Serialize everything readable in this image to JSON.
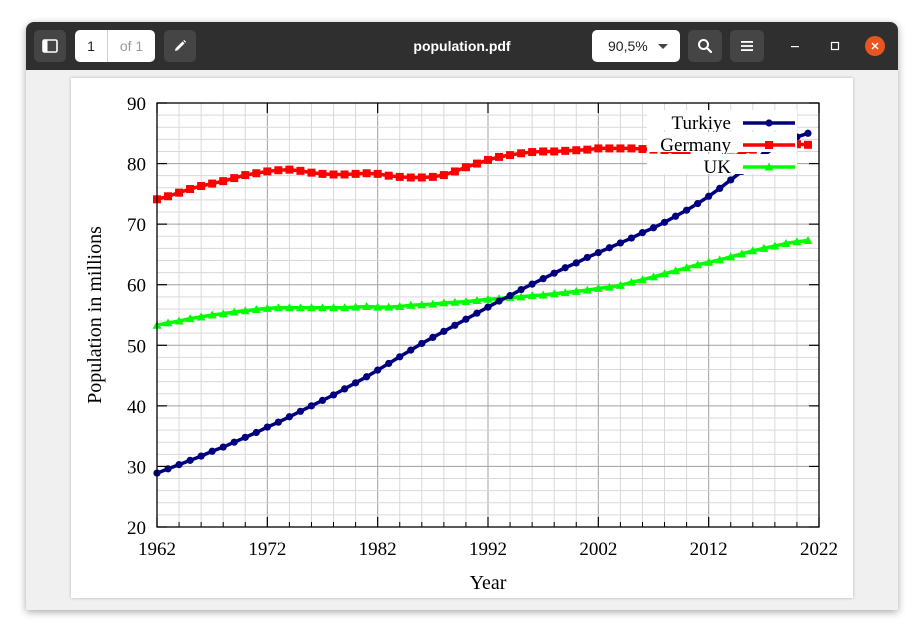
{
  "window": {
    "title": "population.pdf",
    "page_current": "1",
    "page_total": "of 1",
    "zoom": "90,5%"
  },
  "chart_data": {
    "type": "line",
    "title": "",
    "xlabel": "Year",
    "ylabel": "Population in millions",
    "xlim": [
      1962,
      2022
    ],
    "ylim": [
      20,
      90
    ],
    "x_ticks": [
      "1962",
      "1972",
      "1982",
      "1992",
      "2002",
      "2012",
      "2022"
    ],
    "y_ticks": [
      "20",
      "30",
      "40",
      "50",
      "60",
      "70",
      "80",
      "90"
    ],
    "grid": true,
    "legend_position": "top-right",
    "x": [
      1962,
      1963,
      1964,
      1965,
      1966,
      1967,
      1968,
      1969,
      1970,
      1971,
      1972,
      1973,
      1974,
      1975,
      1976,
      1977,
      1978,
      1979,
      1980,
      1981,
      1982,
      1983,
      1984,
      1985,
      1986,
      1987,
      1988,
      1989,
      1990,
      1991,
      1992,
      1993,
      1994,
      1995,
      1996,
      1997,
      1998,
      1999,
      2000,
      2001,
      2002,
      2003,
      2004,
      2005,
      2006,
      2007,
      2008,
      2009,
      2010,
      2011,
      2012,
      2013,
      2014,
      2015,
      2016,
      2017,
      2018,
      2019,
      2020,
      2021
    ],
    "series": [
      {
        "name": "Turkiye",
        "color": "#00007f",
        "marker": "circle",
        "values": [
          28.9,
          29.6,
          30.3,
          31.0,
          31.7,
          32.5,
          33.2,
          34.0,
          34.8,
          35.6,
          36.5,
          37.3,
          38.2,
          39.1,
          40.0,
          40.9,
          41.8,
          42.8,
          43.8,
          44.8,
          45.9,
          47.0,
          48.1,
          49.2,
          50.3,
          51.3,
          52.3,
          53.3,
          54.3,
          55.3,
          56.3,
          57.3,
          58.2,
          59.2,
          60.1,
          61.0,
          61.9,
          62.8,
          63.6,
          64.5,
          65.3,
          66.1,
          66.9,
          67.7,
          68.6,
          69.4,
          70.3,
          71.3,
          72.3,
          73.4,
          74.6,
          75.9,
          77.3,
          78.7,
          80.0,
          81.4,
          82.7,
          83.6,
          84.4,
          85.0
        ]
      },
      {
        "name": "Germany",
        "color": "#ff0000",
        "marker": "square",
        "values": [
          74.1,
          74.6,
          75.2,
          75.8,
          76.3,
          76.7,
          77.1,
          77.6,
          78.1,
          78.4,
          78.7,
          78.9,
          79.0,
          78.8,
          78.5,
          78.3,
          78.2,
          78.2,
          78.3,
          78.4,
          78.3,
          78.0,
          77.8,
          77.7,
          77.7,
          77.8,
          78.1,
          78.7,
          79.4,
          80.0,
          80.6,
          81.1,
          81.4,
          81.7,
          81.9,
          82.0,
          82.0,
          82.1,
          82.2,
          82.3,
          82.5,
          82.5,
          82.5,
          82.5,
          82.4,
          82.3,
          82.1,
          81.9,
          81.8,
          80.3,
          80.4,
          80.6,
          81.0,
          81.7,
          82.3,
          82.7,
          82.9,
          83.1,
          83.2,
          83.1
        ]
      },
      {
        "name": "UK",
        "color": "#00ff00",
        "marker": "triangle",
        "values": [
          53.3,
          53.7,
          54.0,
          54.4,
          54.7,
          55.0,
          55.2,
          55.5,
          55.7,
          55.9,
          56.1,
          56.2,
          56.2,
          56.2,
          56.2,
          56.2,
          56.2,
          56.2,
          56.3,
          56.4,
          56.3,
          56.3,
          56.4,
          56.6,
          56.7,
          56.8,
          57.0,
          57.1,
          57.2,
          57.4,
          57.6,
          57.7,
          57.9,
          58.0,
          58.2,
          58.3,
          58.5,
          58.7,
          58.9,
          59.1,
          59.4,
          59.6,
          59.9,
          60.4,
          60.8,
          61.3,
          61.8,
          62.3,
          62.8,
          63.3,
          63.7,
          64.1,
          64.6,
          65.1,
          65.6,
          66.0,
          66.4,
          66.8,
          67.1,
          67.3
        ]
      }
    ]
  }
}
